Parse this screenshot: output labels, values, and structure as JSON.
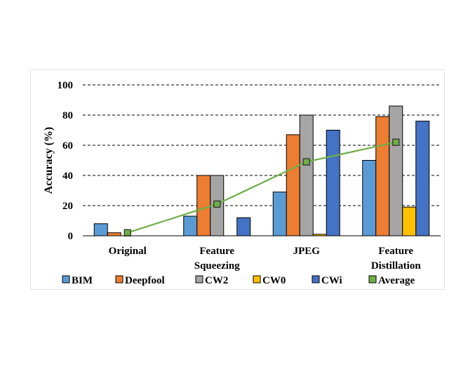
{
  "chart_data": {
    "type": "bar",
    "ylabel": "Accuracy (%)",
    "xlabel": "",
    "ylim": [
      0,
      100
    ],
    "yticks": [
      0,
      20,
      40,
      60,
      80,
      100
    ],
    "grid": "dashed horizontal",
    "legend_position": "bottom",
    "categories": [
      [
        "Original"
      ],
      [
        "Feature",
        "Squeezing"
      ],
      [
        "JPEG"
      ],
      [
        "Feature",
        "Distillation"
      ]
    ],
    "series": [
      {
        "name": "BIM",
        "type": "bar",
        "color": "#5b9bd5",
        "values": [
          8,
          13,
          29,
          50
        ]
      },
      {
        "name": "Deepfool",
        "type": "bar",
        "color": "#ed7d31",
        "values": [
          2,
          40,
          67,
          79
        ]
      },
      {
        "name": "CW2",
        "type": "bar",
        "color": "#a5a5a5",
        "values": [
          0,
          40,
          80,
          86
        ]
      },
      {
        "name": "CW0",
        "type": "bar",
        "color": "#ffc000",
        "values": [
          0,
          0,
          1,
          19
        ]
      },
      {
        "name": "CWi",
        "type": "bar",
        "color": "#4472c4",
        "values": [
          0,
          12,
          70,
          76
        ]
      },
      {
        "name": "Average",
        "type": "line",
        "color": "#70ad47",
        "values": [
          2,
          21,
          49,
          62
        ]
      }
    ]
  }
}
